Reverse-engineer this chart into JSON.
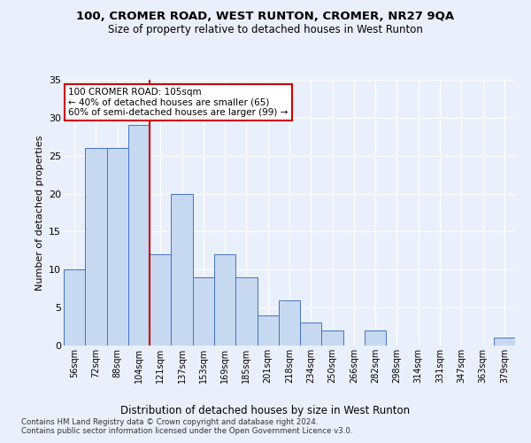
{
  "title1": "100, CROMER ROAD, WEST RUNTON, CROMER, NR27 9QA",
  "title2": "Size of property relative to detached houses in West Runton",
  "xlabel": "Distribution of detached houses by size in West Runton",
  "ylabel": "Number of detached properties",
  "bar_labels": [
    "56sqm",
    "72sqm",
    "88sqm",
    "104sqm",
    "121sqm",
    "137sqm",
    "153sqm",
    "169sqm",
    "185sqm",
    "201sqm",
    "218sqm",
    "234sqm",
    "250sqm",
    "266sqm",
    "282sqm",
    "298sqm",
    "314sqm",
    "331sqm",
    "347sqm",
    "363sqm",
    "379sqm"
  ],
  "bar_values": [
    10,
    26,
    26,
    29,
    12,
    20,
    9,
    12,
    9,
    4,
    6,
    3,
    2,
    0,
    2,
    0,
    0,
    0,
    0,
    0,
    1
  ],
  "bar_color": "#c6d9f0",
  "bar_edge_color": "#4472c4",
  "red_line_x": 3.5,
  "annotation_line1": "100 CROMER ROAD: 105sqm",
  "annotation_line2": "← 40% of detached houses are smaller (65)",
  "annotation_line3": "60% of semi-detached houses are larger (99) →",
  "annotation_box_color": "#ffffff",
  "annotation_border_color": "#cc0000",
  "ylim": [
    0,
    35
  ],
  "yticks": [
    0,
    5,
    10,
    15,
    20,
    25,
    30,
    35
  ],
  "footer1": "Contains HM Land Registry data © Crown copyright and database right 2024.",
  "footer2": "Contains public sector information licensed under the Open Government Licence v3.0.",
  "background_color": "#eaf0fb",
  "grid_color": "#ffffff"
}
